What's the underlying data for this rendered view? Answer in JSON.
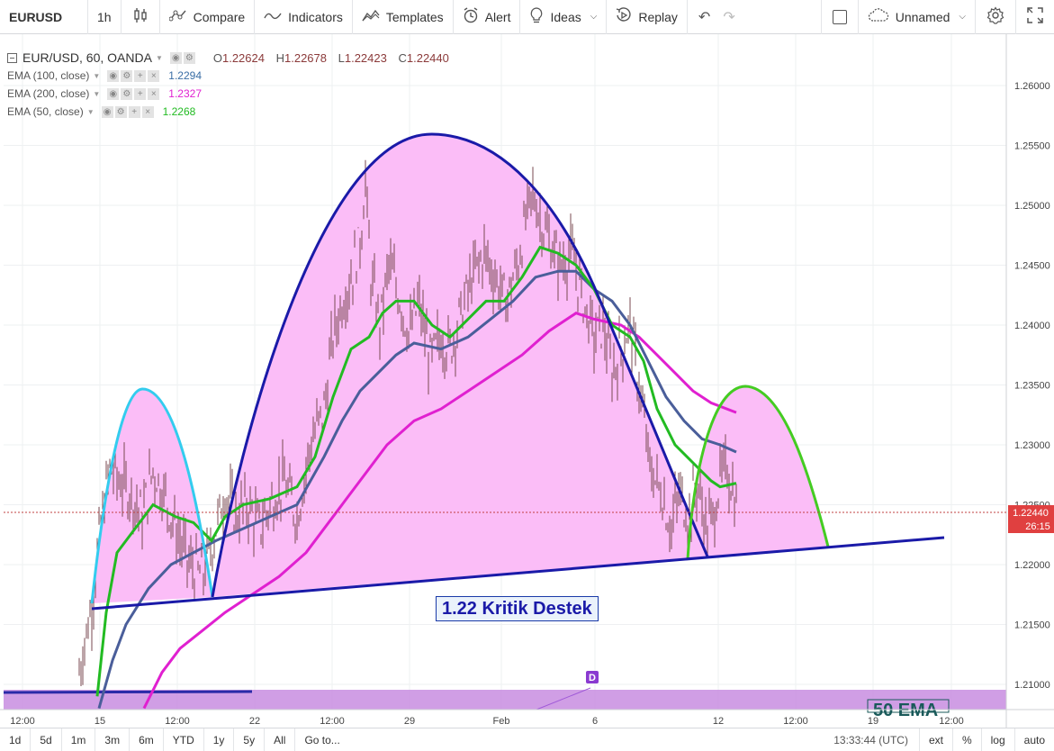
{
  "toolbar": {
    "symbol": "EURUSD",
    "interval": "1h",
    "compare": "Compare",
    "indicators": "Indicators",
    "templates": "Templates",
    "alert": "Alert",
    "ideas": "Ideas",
    "replay": "Replay",
    "layout_name": "Unnamed"
  },
  "legend": {
    "title": "EUR/USD, 60, OANDA",
    "open_label": "O",
    "open": "1.22624",
    "high_label": "H",
    "high": "1.22678",
    "low_label": "L",
    "low": "1.22423",
    "close_label": "C",
    "close": "1.22440",
    "indicators": [
      {
        "label": "EMA (100, close)",
        "value": "1.2294",
        "color": "#3a6ea5"
      },
      {
        "label": "EMA (200, close)",
        "value": "1.2327",
        "color": "#e020d0"
      },
      {
        "label": "EMA (50, close)",
        "value": "1.2268",
        "color": "#22bb22"
      }
    ]
  },
  "annotation": {
    "text": "1.22 Kritik Destek",
    "marker": "D",
    "partial_label": "50 EMA"
  },
  "chart_data": {
    "type": "line",
    "price_axis": {
      "ticks": [
        "1.26000",
        "1.25500",
        "1.25000",
        "1.24500",
        "1.24000",
        "1.23500",
        "1.23000",
        "1.22500",
        "1.22000",
        "1.21500",
        "1.21000"
      ],
      "range": [
        1.208,
        1.263
      ]
    },
    "last_price": "1.22440",
    "countdown": "26:15",
    "time_axis": {
      "ticks": [
        "12:00",
        "15",
        "12:00",
        "22",
        "12:00",
        "29",
        "Feb",
        "6",
        "12",
        "12:00",
        "19",
        "12:00"
      ]
    },
    "series": [
      {
        "name": "EMA (50, close)",
        "color": "#22bb22"
      },
      {
        "name": "EMA (100, close)",
        "color": "#4a5e9a"
      },
      {
        "name": "EMA (200, close)",
        "color": "#e020d0"
      }
    ],
    "colors": {
      "pattern_fill": "#f9b8f5",
      "trendline": "#1a1aa8",
      "left_shoulder": "#33ccee",
      "right_shoulder": "#44cc22",
      "band": "#c88de0"
    }
  },
  "bottombar": {
    "ranges": [
      "1d",
      "5d",
      "1m",
      "3m",
      "6m",
      "YTD",
      "1y",
      "5y",
      "All"
    ],
    "goto": "Go to...",
    "time": "13:33:44 (UTC)",
    "ext": "ext",
    "pct": "%",
    "log": "log",
    "auto": "auto"
  }
}
